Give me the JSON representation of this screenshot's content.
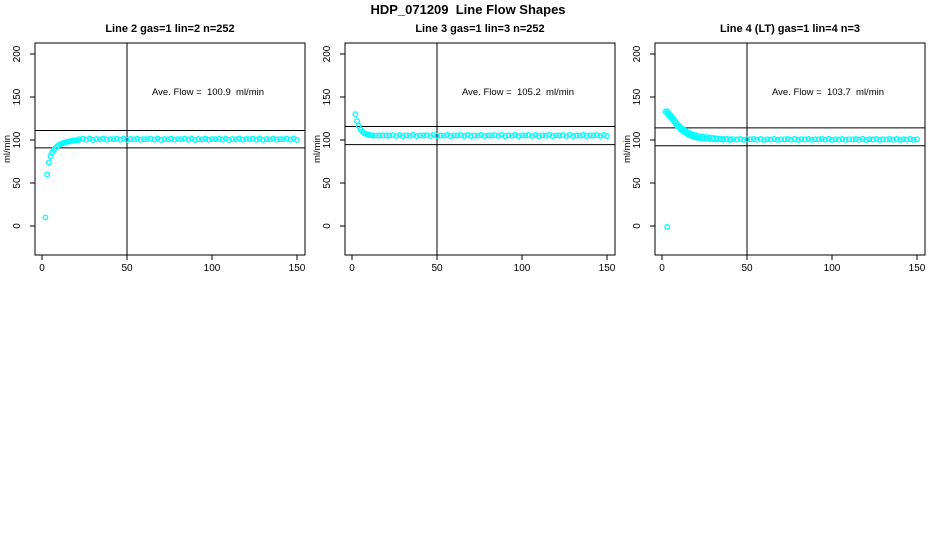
{
  "page": {
    "title": "HDP_071209  Line Flow Shapes"
  },
  "chart_data": {
    "type": "scatter",
    "suptitle": "HDP_071209  Line Flow Shapes",
    "y_unit_label": "ml/min",
    "x_ticks": [
      0,
      50,
      100,
      150
    ],
    "y_ticks": [
      0,
      50,
      100,
      150,
      200
    ],
    "x_range": [
      -4,
      155
    ],
    "y_range": [
      -34,
      213
    ],
    "grid": false,
    "legend": "none",
    "point_color": "#00FFFF",
    "line_color": "#000000",
    "vline_x": 50,
    "panels": [
      {
        "title": "Line 2 gas=1 lin=2 n=252",
        "ave_flow": 100.9,
        "annotation": "Ave. Flow =  100.9  ml/min",
        "ref_lines": [
          111.0,
          90.8
        ],
        "points": [
          [
            2,
            10
          ],
          [
            3,
            60
          ],
          [
            4,
            74
          ],
          [
            5,
            81
          ],
          [
            6,
            85.5
          ],
          [
            7,
            88.5
          ],
          [
            8,
            91
          ],
          [
            9,
            92.8
          ],
          [
            10,
            94.2
          ],
          [
            11,
            95.3
          ],
          [
            12,
            96.2
          ],
          [
            13,
            96.9
          ],
          [
            14,
            97.5
          ],
          [
            15,
            98
          ],
          [
            16,
            98.4
          ],
          [
            17,
            98.8
          ],
          [
            18,
            99.1
          ],
          [
            19,
            99.3
          ],
          [
            20,
            99.5
          ],
          [
            21,
            99.7
          ]
        ],
        "band": {
          "x_from": 22,
          "x_to": 150,
          "step": 2,
          "center": 100.9,
          "jitter_cycle": [
            0,
            0.6,
            -0.5,
            0.9,
            -0.8,
            0.3,
            -0.2,
            0.7,
            -0.6,
            0.1
          ]
        }
      },
      {
        "title": "Line 3 gas=1 lin=3 n=252",
        "ave_flow": 105.2,
        "annotation": "Ave. Flow =  105.2  ml/min",
        "ref_lines": [
          115.7,
          94.7
        ],
        "points": [
          [
            2,
            130
          ],
          [
            3,
            122
          ],
          [
            4,
            116.5
          ],
          [
            5,
            112.5
          ],
          [
            6,
            110
          ],
          [
            7,
            108.3
          ],
          [
            8,
            107.2
          ],
          [
            9,
            106.4
          ],
          [
            10,
            105.9
          ],
          [
            11,
            105.6
          ],
          [
            12,
            105.4
          ],
          [
            14,
            105.3
          ],
          [
            16,
            105.2
          ],
          [
            18,
            105.2
          ],
          [
            20,
            105.2
          ]
        ],
        "band": {
          "x_from": 22,
          "x_to": 150,
          "step": 2,
          "center": 105.2,
          "jitter_cycle": [
            0,
            0.5,
            -0.4,
            0.7,
            -0.6,
            0.2,
            -0.2,
            0.6,
            -0.5,
            0.1
          ]
        }
      },
      {
        "title": "Line 4 (LT) gas=1 lin=4 n=3",
        "ave_flow": 103.7,
        "annotation": "Ave. Flow =  103.7  ml/min",
        "ref_lines": [
          114.1,
          93.3
        ],
        "points": [
          [
            3,
            -1
          ],
          [
            2,
            133
          ],
          [
            3,
            131
          ],
          [
            4,
            129
          ],
          [
            5,
            126.5
          ],
          [
            6,
            124
          ],
          [
            7,
            121.5
          ],
          [
            8,
            119
          ],
          [
            9,
            116.5
          ],
          [
            10,
            114.5
          ],
          [
            11,
            112.5
          ],
          [
            12,
            110.8
          ],
          [
            13,
            109.3
          ],
          [
            14,
            108
          ],
          [
            15,
            106.8
          ],
          [
            16,
            105.8
          ],
          [
            17,
            105
          ],
          [
            18,
            104.2
          ],
          [
            19,
            103.6
          ],
          [
            20,
            103
          ],
          [
            21,
            102.6
          ],
          [
            22,
            102.2
          ],
          [
            24,
            101.7
          ],
          [
            26,
            101.3
          ],
          [
            28,
            101.1
          ],
          [
            30,
            100.9
          ],
          [
            3,
            133.5
          ],
          [
            4,
            131.3
          ],
          [
            5,
            128.8
          ],
          [
            6,
            126.3
          ],
          [
            7,
            123.8
          ],
          [
            8,
            121.3
          ],
          [
            9,
            118.8
          ],
          [
            10,
            116.8
          ],
          [
            11,
            114.8
          ],
          [
            12,
            113.1
          ],
          [
            13,
            111.6
          ],
          [
            14,
            110.3
          ],
          [
            15,
            109.1
          ],
          [
            16,
            108.1
          ],
          [
            17,
            107.3
          ],
          [
            18,
            106.5
          ],
          [
            19,
            105.9
          ],
          [
            20,
            105.3
          ],
          [
            22,
            104.5
          ],
          [
            24,
            104
          ],
          [
            26,
            103.4
          ],
          [
            28,
            102.9
          ],
          [
            30,
            102.4
          ],
          [
            32,
            102
          ],
          [
            34,
            101.6
          ],
          [
            36,
            101.3
          ],
          [
            38,
            101.1
          ],
          [
            40,
            100.9
          ]
        ],
        "band": {
          "x_from": 32,
          "x_to": 150,
          "step": 2,
          "center": 100.7,
          "jitter_cycle": [
            0,
            0.5,
            -0.4,
            0.7,
            -0.6,
            0.2,
            -0.2,
            0.6,
            -0.5,
            0.1
          ]
        }
      }
    ]
  }
}
